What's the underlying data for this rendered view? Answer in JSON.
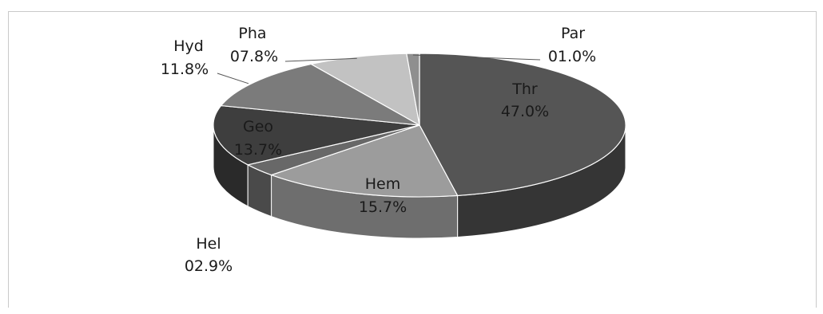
{
  "chart_data": {
    "type": "pie",
    "style": "3d",
    "slices": [
      {
        "name": "Thr",
        "value": 47.0,
        "label": "47.0%",
        "color": "#555555",
        "side": "#353535"
      },
      {
        "name": "Hem",
        "value": 15.7,
        "label": "15.7%",
        "color": "#9c9c9c",
        "side": "#6e6e6e"
      },
      {
        "name": "Hel",
        "value": 2.9,
        "label": "02.9%",
        "color": "#686868",
        "side": "#4a4a4a"
      },
      {
        "name": "Geo",
        "value": 13.7,
        "label": "13.7%",
        "color": "#3e3e3e",
        "side": "#2a2a2a"
      },
      {
        "name": "Hyd",
        "value": 11.8,
        "label": "11.8%",
        "color": "#7b7b7b",
        "side": "#585858"
      },
      {
        "name": "Pha",
        "value": 7.8,
        "label": "07.8%",
        "color": "#c2c2c2",
        "side": "#9a9a9a"
      },
      {
        "name": "Par",
        "value": 1.0,
        "label": "01.0%",
        "color": "#8f8f8f",
        "side": "#666666"
      }
    ]
  }
}
